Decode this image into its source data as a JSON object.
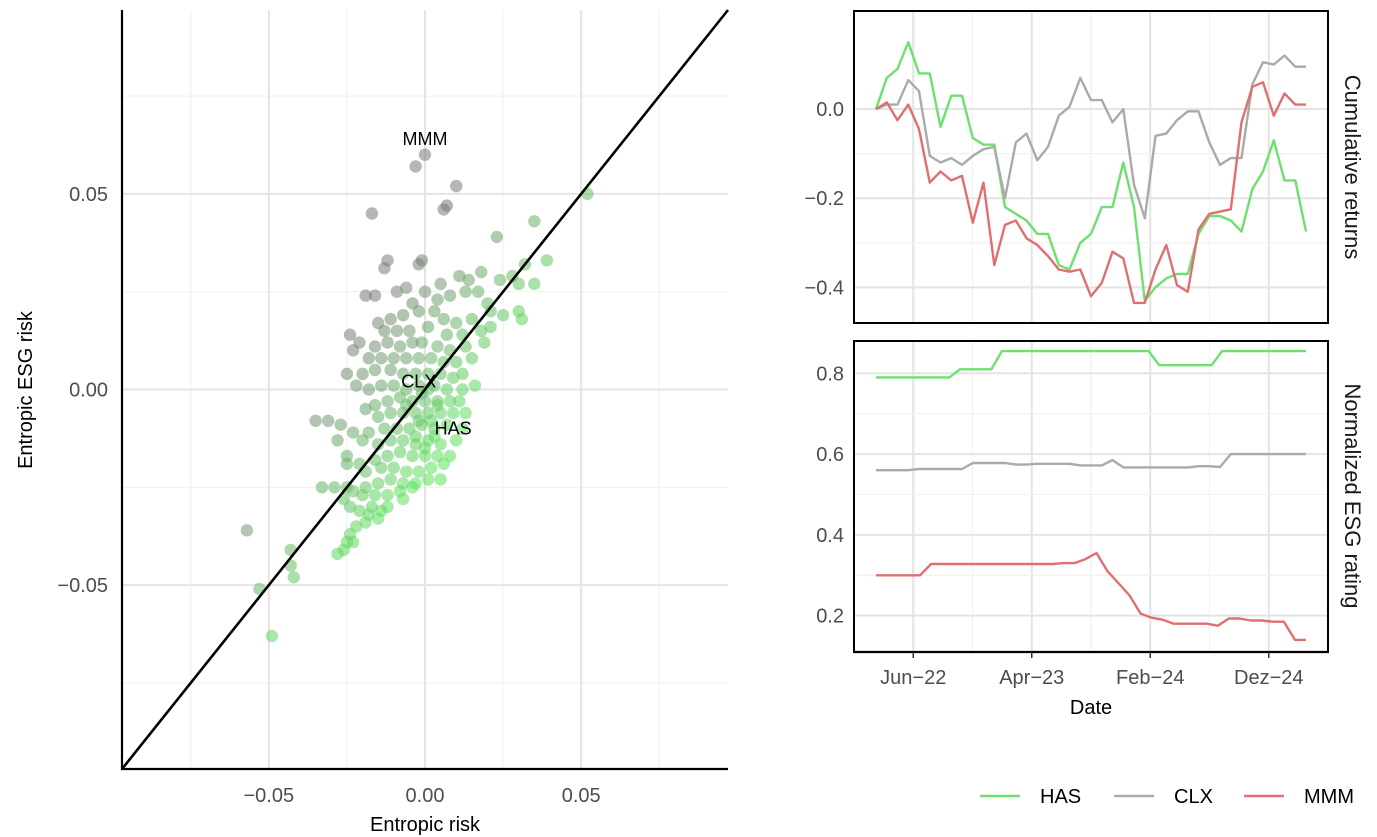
{
  "chart_data": [
    {
      "type": "scatter",
      "xlabel": "Entropic risk",
      "ylabel": "Entropic ESG risk",
      "xlim": [
        -0.097,
        0.097
      ],
      "ylim": [
        -0.097,
        0.097
      ],
      "x_ticks": [
        -0.05,
        0.0,
        0.05
      ],
      "x_tick_labels": [
        "−0.05",
        "0.00",
        "0.05"
      ],
      "y_ticks": [
        -0.05,
        0.0,
        0.05
      ],
      "y_tick_labels": [
        "−0.05",
        "0.00",
        "0.05"
      ],
      "grid": true,
      "diagonal_line": "y = x",
      "point_color_gradient": [
        "#5ee05e",
        "#7a7a7a"
      ],
      "annotations": [
        {
          "label": "MMM",
          "x": 0.0,
          "y": 0.064
        },
        {
          "label": "CLX",
          "x": -0.002,
          "y": 0.002
        },
        {
          "label": "HAS",
          "x": 0.009,
          "y": -0.01
        }
      ],
      "points": [
        [
          0.0,
          0.06
        ],
        [
          -0.003,
          0.057
        ],
        [
          -0.017,
          0.045
        ],
        [
          0.01,
          0.052
        ],
        [
          0.007,
          0.047
        ],
        [
          0.006,
          0.046
        ],
        [
          0.052,
          0.05
        ],
        [
          0.035,
          0.043
        ],
        [
          0.023,
          0.039
        ],
        [
          0.039,
          0.033
        ],
        [
          0.032,
          0.032
        ],
        [
          0.035,
          0.027
        ],
        [
          0.03,
          0.027
        ],
        [
          0.028,
          0.029
        ],
        [
          0.024,
          0.028
        ],
        [
          0.018,
          0.03
        ],
        [
          0.014,
          0.028
        ],
        [
          0.011,
          0.029
        ],
        [
          0.005,
          0.027
        ],
        [
          -0.001,
          0.033
        ],
        [
          -0.002,
          0.032
        ],
        [
          -0.012,
          0.033
        ],
        [
          -0.013,
          0.031
        ],
        [
          -0.019,
          0.024
        ],
        [
          -0.016,
          0.024
        ],
        [
          -0.009,
          0.025
        ],
        [
          -0.006,
          0.026
        ],
        [
          -0.004,
          0.022
        ],
        [
          0.0,
          0.025
        ],
        [
          0.004,
          0.023
        ],
        [
          0.008,
          0.024
        ],
        [
          0.013,
          0.025
        ],
        [
          0.017,
          0.025
        ],
        [
          0.02,
          0.022
        ],
        [
          0.021,
          0.02
        ],
        [
          0.025,
          0.019
        ],
        [
          0.03,
          0.02
        ],
        [
          0.031,
          0.018
        ],
        [
          0.015,
          0.018
        ],
        [
          0.01,
          0.017
        ],
        [
          0.006,
          0.018
        ],
        [
          0.003,
          0.02
        ],
        [
          -0.002,
          0.02
        ],
        [
          -0.007,
          0.019
        ],
        [
          -0.011,
          0.018
        ],
        [
          -0.015,
          0.017
        ],
        [
          -0.013,
          0.015
        ],
        [
          -0.009,
          0.015
        ],
        [
          -0.005,
          0.015
        ],
        [
          0.001,
          0.016
        ],
        [
          0.007,
          0.014
        ],
        [
          0.012,
          0.014
        ],
        [
          0.018,
          0.015
        ],
        [
          0.021,
          0.016
        ],
        [
          0.019,
          0.012
        ],
        [
          0.013,
          0.011
        ],
        [
          0.008,
          0.01
        ],
        [
          0.004,
          0.011
        ],
        [
          -0.001,
          0.012
        ],
        [
          -0.004,
          0.012
        ],
        [
          -0.008,
          0.011
        ],
        [
          -0.012,
          0.012
        ],
        [
          -0.016,
          0.011
        ],
        [
          -0.021,
          0.012
        ],
        [
          -0.024,
          0.014
        ],
        [
          -0.023,
          0.01
        ],
        [
          -0.018,
          0.008
        ],
        [
          -0.014,
          0.008
        ],
        [
          -0.01,
          0.008
        ],
        [
          -0.006,
          0.008
        ],
        [
          -0.002,
          0.008
        ],
        [
          0.002,
          0.008
        ],
        [
          0.006,
          0.007
        ],
        [
          0.01,
          0.007
        ],
        [
          0.015,
          0.008
        ],
        [
          0.012,
          0.004
        ],
        [
          0.009,
          0.003
        ],
        [
          0.005,
          0.004
        ],
        [
          0.001,
          0.004
        ],
        [
          -0.003,
          0.004
        ],
        [
          -0.007,
          0.004
        ],
        [
          -0.011,
          0.005
        ],
        [
          -0.016,
          0.005
        ],
        [
          -0.02,
          0.004
        ],
        [
          -0.025,
          0.004
        ],
        [
          -0.022,
          0.001
        ],
        [
          -0.018,
          0.0
        ],
        [
          -0.014,
          0.001
        ],
        [
          -0.01,
          0.001
        ],
        [
          -0.006,
          0.0
        ],
        [
          -0.002,
          0.001
        ],
        [
          0.003,
          0.001
        ],
        [
          0.007,
          0.0
        ],
        [
          0.012,
          0.0
        ],
        [
          0.016,
          0.001
        ],
        [
          0.011,
          -0.003
        ],
        [
          0.008,
          -0.003
        ],
        [
          0.004,
          -0.003
        ],
        [
          0.0,
          -0.003
        ],
        [
          -0.004,
          -0.003
        ],
        [
          -0.008,
          -0.002
        ],
        [
          -0.012,
          -0.003
        ],
        [
          -0.016,
          -0.004
        ],
        [
          -0.019,
          -0.005
        ],
        [
          -0.015,
          -0.007
        ],
        [
          -0.011,
          -0.006
        ],
        [
          -0.007,
          -0.006
        ],
        [
          -0.003,
          -0.006
        ],
        [
          0.001,
          -0.006
        ],
        [
          0.005,
          -0.006
        ],
        [
          0.009,
          -0.006
        ],
        [
          0.013,
          -0.006
        ],
        [
          0.012,
          -0.01
        ],
        [
          0.007,
          -0.009
        ],
        [
          0.003,
          -0.01
        ],
        [
          -0.001,
          -0.009
        ],
        [
          -0.005,
          -0.01
        ],
        [
          -0.009,
          -0.01
        ],
        [
          -0.013,
          -0.01
        ],
        [
          -0.018,
          -0.011
        ],
        [
          -0.023,
          -0.011
        ],
        [
          -0.02,
          -0.013
        ],
        [
          -0.015,
          -0.014
        ],
        [
          -0.011,
          -0.013
        ],
        [
          -0.007,
          -0.013
        ],
        [
          -0.003,
          -0.014
        ],
        [
          0.001,
          -0.013
        ],
        [
          0.005,
          -0.014
        ],
        [
          0.01,
          -0.013
        ],
        [
          0.008,
          -0.017
        ],
        [
          0.004,
          -0.017
        ],
        [
          0.0,
          -0.017
        ],
        [
          -0.004,
          -0.017
        ],
        [
          -0.008,
          -0.016
        ],
        [
          -0.012,
          -0.017
        ],
        [
          -0.016,
          -0.018
        ],
        [
          -0.021,
          -0.019
        ],
        [
          -0.025,
          -0.019
        ],
        [
          -0.019,
          -0.021
        ],
        [
          -0.014,
          -0.02
        ],
        [
          -0.01,
          -0.02
        ],
        [
          -0.006,
          -0.021
        ],
        [
          -0.002,
          -0.021
        ],
        [
          0.002,
          -0.02
        ],
        [
          0.006,
          -0.019
        ],
        [
          0.005,
          -0.023
        ],
        [
          0.001,
          -0.023
        ],
        [
          -0.003,
          -0.024
        ],
        [
          -0.007,
          -0.024
        ],
        [
          -0.011,
          -0.023
        ],
        [
          -0.015,
          -0.024
        ],
        [
          -0.019,
          -0.025
        ],
        [
          -0.023,
          -0.026
        ],
        [
          -0.025,
          -0.025
        ],
        [
          -0.029,
          -0.025
        ],
        [
          -0.026,
          -0.028
        ],
        [
          -0.02,
          -0.027
        ],
        [
          -0.016,
          -0.027
        ],
        [
          -0.012,
          -0.027
        ],
        [
          -0.008,
          -0.026
        ],
        [
          -0.004,
          -0.025
        ],
        [
          -0.017,
          -0.03
        ],
        [
          -0.014,
          -0.031
        ],
        [
          -0.018,
          -0.032
        ],
        [
          -0.015,
          -0.033
        ],
        [
          -0.021,
          -0.031
        ],
        [
          -0.024,
          -0.03
        ],
        [
          -0.022,
          -0.035
        ],
        [
          -0.024,
          -0.037
        ],
        [
          -0.023,
          -0.039
        ],
        [
          -0.025,
          -0.039
        ],
        [
          -0.026,
          -0.041
        ],
        [
          -0.028,
          -0.042
        ],
        [
          -0.019,
          -0.034
        ],
        [
          -0.012,
          -0.03
        ],
        [
          -0.007,
          -0.028
        ],
        [
          -0.033,
          -0.025
        ],
        [
          -0.035,
          -0.008
        ],
        [
          -0.031,
          -0.008
        ],
        [
          -0.027,
          -0.009
        ],
        [
          -0.028,
          -0.013
        ],
        [
          -0.025,
          -0.017
        ],
        [
          0.001,
          0.0
        ],
        [
          -0.001,
          -0.001
        ],
        [
          0.002,
          -0.008
        ],
        [
          -0.002,
          -0.008
        ],
        [
          0.003,
          -0.012
        ],
        [
          -0.003,
          -0.012
        ],
        [
          0.0,
          -0.015
        ],
        [
          0.004,
          -0.004
        ],
        [
          -0.006,
          -0.004
        ],
        [
          -0.057,
          -0.036
        ],
        [
          -0.053,
          -0.051
        ],
        [
          -0.043,
          -0.041
        ],
        [
          -0.043,
          -0.045
        ],
        [
          -0.042,
          -0.048
        ],
        [
          -0.049,
          -0.063
        ]
      ]
    },
    {
      "type": "line",
      "panel": "Cumulative returns",
      "ylim": [
        -0.48,
        0.22
      ],
      "y_ticks": [
        0.0,
        -0.2,
        -0.4
      ],
      "y_tick_labels": [
        "0.0",
        "−0.2",
        "−0.4"
      ],
      "series": [
        {
          "name": "HAS",
          "color": "#6ee06e",
          "values": [
            0.0,
            0.07,
            0.09,
            0.15,
            0.08,
            0.08,
            -0.04,
            0.03,
            0.03,
            -0.065,
            -0.08,
            -0.08,
            -0.22,
            -0.235,
            -0.25,
            -0.28,
            -0.28,
            -0.35,
            -0.36,
            -0.3,
            -0.28,
            -0.22,
            -0.22,
            -0.12,
            -0.22,
            -0.43,
            -0.4,
            -0.38,
            -0.37,
            -0.37,
            -0.28,
            -0.24,
            -0.24,
            -0.25,
            -0.275,
            -0.18,
            -0.14,
            -0.07,
            -0.16,
            -0.16,
            -0.275
          ]
        },
        {
          "name": "CLX",
          "color": "#aaaaaa",
          "values": [
            0.0,
            0.01,
            0.01,
            0.065,
            0.04,
            -0.105,
            -0.12,
            -0.11,
            -0.125,
            -0.105,
            -0.09,
            -0.085,
            -0.2,
            -0.075,
            -0.055,
            -0.115,
            -0.085,
            -0.015,
            0.005,
            0.07,
            0.02,
            0.02,
            -0.03,
            0.0,
            -0.17,
            -0.245,
            -0.06,
            -0.055,
            -0.025,
            -0.005,
            -0.005,
            -0.075,
            -0.125,
            -0.11,
            -0.11,
            0.055,
            0.105,
            0.1,
            0.12,
            0.095,
            0.095
          ]
        },
        {
          "name": "MMM",
          "color": "#e07070",
          "values": [
            0.0,
            0.015,
            -0.025,
            0.01,
            -0.045,
            -0.165,
            -0.14,
            -0.16,
            -0.15,
            -0.255,
            -0.165,
            -0.35,
            -0.26,
            -0.25,
            -0.29,
            -0.305,
            -0.33,
            -0.36,
            -0.365,
            -0.36,
            -0.42,
            -0.39,
            -0.32,
            -0.335,
            -0.435,
            -0.435,
            -0.36,
            -0.305,
            -0.395,
            -0.41,
            -0.27,
            -0.235,
            -0.23,
            -0.225,
            -0.03,
            0.05,
            0.06,
            -0.015,
            0.035,
            0.01,
            0.01
          ]
        }
      ]
    },
    {
      "type": "line",
      "panel": "Normalized ESG rating",
      "xlabel": "Date",
      "ylim": [
        0.11,
        0.88
      ],
      "y_ticks": [
        0.8,
        0.6,
        0.4,
        0.2
      ],
      "y_tick_labels": [
        "0.8",
        "0.6",
        "0.4",
        "0.2"
      ],
      "x_tick_labels": [
        "Jun−22",
        "Apr−23",
        "Feb−24",
        "Dez−24"
      ],
      "series": [
        {
          "name": "HAS",
          "color": "#6ee06e",
          "values": [
            0.79,
            0.79,
            0.79,
            0.79,
            0.79,
            0.79,
            0.79,
            0.79,
            0.81,
            0.81,
            0.81,
            0.81,
            0.855,
            0.855,
            0.855,
            0.855,
            0.855,
            0.855,
            0.855,
            0.855,
            0.855,
            0.855,
            0.855,
            0.855,
            0.855,
            0.855,
            0.855,
            0.82,
            0.82,
            0.82,
            0.82,
            0.82,
            0.82,
            0.855,
            0.855,
            0.855,
            0.855,
            0.855,
            0.855,
            0.855,
            0.855,
            0.855
          ]
        },
        {
          "name": "CLX",
          "color": "#aaaaaa",
          "values": [
            0.56,
            0.56,
            0.56,
            0.56,
            0.563,
            0.563,
            0.563,
            0.563,
            0.563,
            0.578,
            0.578,
            0.578,
            0.578,
            0.574,
            0.574,
            0.576,
            0.576,
            0.576,
            0.576,
            0.572,
            0.572,
            0.572,
            0.585,
            0.567,
            0.567,
            0.567,
            0.567,
            0.567,
            0.567,
            0.567,
            0.57,
            0.57,
            0.568,
            0.6,
            0.6,
            0.6,
            0.6,
            0.6,
            0.6,
            0.6,
            0.6
          ]
        },
        {
          "name": "MMM",
          "color": "#e07070",
          "values": [
            0.3,
            0.3,
            0.3,
            0.3,
            0.3,
            0.328,
            0.328,
            0.328,
            0.328,
            0.328,
            0.328,
            0.328,
            0.328,
            0.328,
            0.328,
            0.328,
            0.328,
            0.33,
            0.33,
            0.34,
            0.355,
            0.31,
            0.28,
            0.25,
            0.205,
            0.195,
            0.19,
            0.18,
            0.18,
            0.18,
            0.18,
            0.175,
            0.193,
            0.193,
            0.188,
            0.188,
            0.185,
            0.185,
            0.14,
            0.14
          ]
        }
      ]
    }
  ],
  "legend": {
    "position": "bottom-right",
    "entries": [
      {
        "name": "HAS",
        "color": "#6ee06e"
      },
      {
        "name": "CLX",
        "color": "#aaaaaa"
      },
      {
        "name": "MMM",
        "color": "#e07070"
      }
    ]
  }
}
